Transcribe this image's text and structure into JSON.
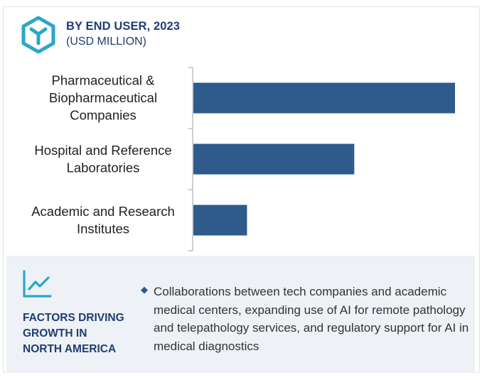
{
  "header": {
    "title": "BY END USER, 2023",
    "subtitle": "(USD MILLION)"
  },
  "colors": {
    "bar": "#2e5a8c",
    "accent": "#2aa7c9",
    "heading": "#1f3e72",
    "footer_bg": "#eef1f5"
  },
  "chart_data": {
    "type": "bar",
    "orientation": "horizontal",
    "title": "BY END USER, 2023",
    "subtitle": "(USD MILLION)",
    "categories": [
      [
        "Pharmaceutical &",
        "Biopharmaceutical",
        "Companies"
      ],
      [
        "Hospital and Reference",
        "Laboratories"
      ],
      [
        "Academic and Research",
        "Institutes"
      ]
    ],
    "values": [
      100,
      61.5,
      20.5
    ],
    "value_scale": "relative (no axis values printed)",
    "xlim": [
      0,
      100
    ],
    "grid": false,
    "legend": "none"
  },
  "footer": {
    "icon": "trend-line-chart-icon",
    "heading_lines": [
      "FACTORS DRIVING",
      "GROWTH IN",
      "NORTH AMERICA"
    ],
    "bullet_icon": "diamond-bullet",
    "text": "Collaborations between tech companies and academic medical centers, expanding use of AI for remote pathology and telepathology services, and regulatory support for AI in medical diagnostics"
  }
}
